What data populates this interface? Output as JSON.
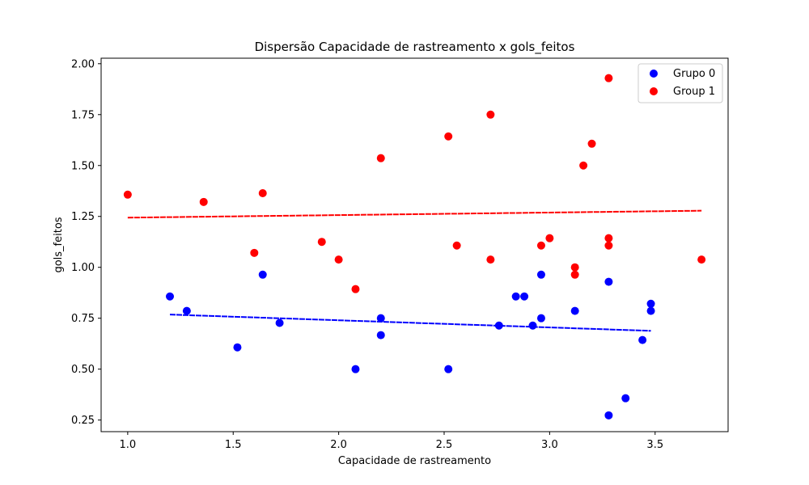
{
  "chart_data": {
    "type": "scatter",
    "title": "Dispersão Capacidade de rastreamento x gols_feitos",
    "xlabel": "Capacidade de rastreamento",
    "ylabel": "gols_feitos",
    "xlim": [
      0.874,
      3.846
    ],
    "ylim": [
      0.193,
      2.027
    ],
    "xticks": [
      1.0,
      1.5,
      2.0,
      2.5,
      3.0,
      3.5
    ],
    "xtick_labels": [
      "1.0",
      "1.5",
      "2.0",
      "2.5",
      "3.0",
      "3.5"
    ],
    "yticks": [
      0.25,
      0.5,
      0.75,
      1.0,
      1.25,
      1.5,
      1.75,
      2.0
    ],
    "ytick_labels": [
      "0.25",
      "0.50",
      "0.75",
      "1.00",
      "1.25",
      "1.50",
      "1.75",
      "2.00"
    ],
    "grid": false,
    "legend_position": "top-right",
    "series": [
      {
        "name": "Grupo 0",
        "color": "#0000ff",
        "points": [
          [
            1.2,
            0.857
          ],
          [
            1.28,
            0.786
          ],
          [
            1.52,
            0.607
          ],
          [
            1.64,
            0.964
          ],
          [
            1.72,
            0.727
          ],
          [
            2.08,
            0.5
          ],
          [
            2.2,
            0.75
          ],
          [
            2.2,
            0.667
          ],
          [
            2.52,
            0.5
          ],
          [
            2.76,
            0.714
          ],
          [
            2.84,
            0.857
          ],
          [
            2.88,
            0.857
          ],
          [
            2.92,
            0.714
          ],
          [
            2.96,
            0.964
          ],
          [
            2.96,
            0.75
          ],
          [
            3.12,
            0.786
          ],
          [
            3.28,
            0.929
          ],
          [
            3.28,
            0.273
          ],
          [
            3.36,
            0.357
          ],
          [
            3.44,
            0.643
          ],
          [
            3.48,
            0.821
          ],
          [
            3.48,
            0.786
          ]
        ],
        "trendline": {
          "x": [
            1.2,
            3.48
          ],
          "y": [
            0.768,
            0.688
          ]
        }
      },
      {
        "name": "Group 1",
        "color": "#ff0000",
        "points": [
          [
            1.0,
            1.357
          ],
          [
            1.36,
            1.321
          ],
          [
            1.6,
            1.071
          ],
          [
            1.64,
            1.364
          ],
          [
            1.92,
            1.125
          ],
          [
            2.0,
            1.038
          ],
          [
            2.08,
            0.893
          ],
          [
            2.2,
            1.536
          ],
          [
            2.52,
            1.643
          ],
          [
            2.56,
            1.107
          ],
          [
            2.72,
            1.75
          ],
          [
            2.72,
            1.038
          ],
          [
            2.96,
            1.107
          ],
          [
            3.0,
            1.143
          ],
          [
            3.12,
            1.0
          ],
          [
            3.12,
            0.964
          ],
          [
            3.16,
            1.5
          ],
          [
            3.2,
            1.607
          ],
          [
            3.28,
            1.929
          ],
          [
            3.28,
            1.143
          ],
          [
            3.28,
            1.107
          ],
          [
            3.72,
            1.038
          ]
        ],
        "trendline": {
          "x": [
            1.0,
            3.72
          ],
          "y": [
            1.244,
            1.278
          ]
        }
      }
    ]
  }
}
